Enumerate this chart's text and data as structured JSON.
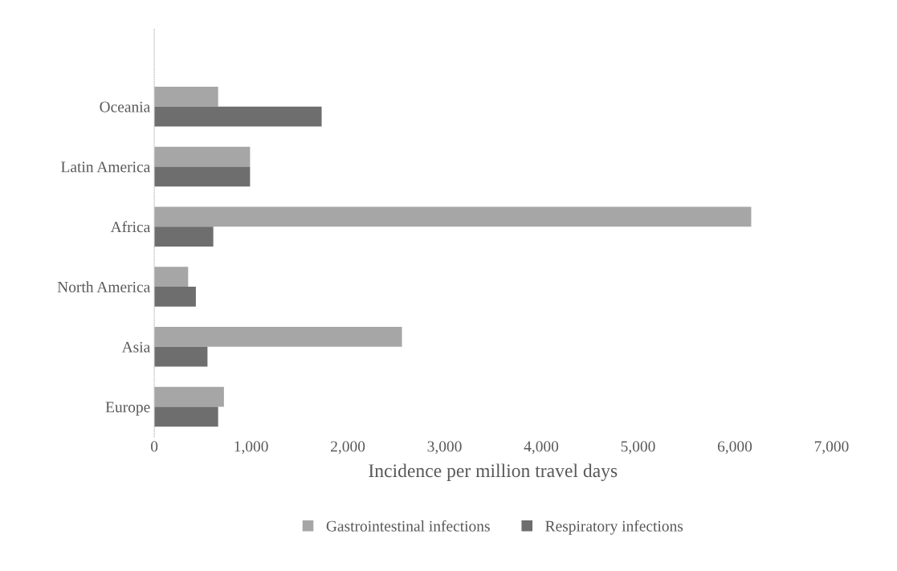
{
  "chart_data": {
    "type": "bar",
    "orientation": "horizontal",
    "xlabel": "Incidence per million travel days",
    "categories": [
      "Oceania",
      "Latin America",
      "Africa",
      "North America",
      "Asia",
      "Europe"
    ],
    "series": [
      {
        "name": "Gastrointestinal infections",
        "color": "#a6a6a6",
        "values": [
          660,
          990,
          6170,
          350,
          2560,
          720
        ]
      },
      {
        "name": "Respiratory infections",
        "color": "#6e6e6e",
        "values": [
          1730,
          990,
          610,
          430,
          550,
          660
        ]
      }
    ],
    "xlim": [
      0,
      7000
    ],
    "xticks": [
      {
        "value": 0,
        "label": "0"
      },
      {
        "value": 1000,
        "label": "1,000"
      },
      {
        "value": 2000,
        "label": "2,000"
      },
      {
        "value": 3000,
        "label": "3,000"
      },
      {
        "value": 4000,
        "label": "4,000"
      },
      {
        "value": 5000,
        "label": "5,000"
      },
      {
        "value": 6000,
        "label": "6,000"
      },
      {
        "value": 7000,
        "label": "7,000"
      }
    ],
    "grid": false,
    "legend": "bottom"
  }
}
